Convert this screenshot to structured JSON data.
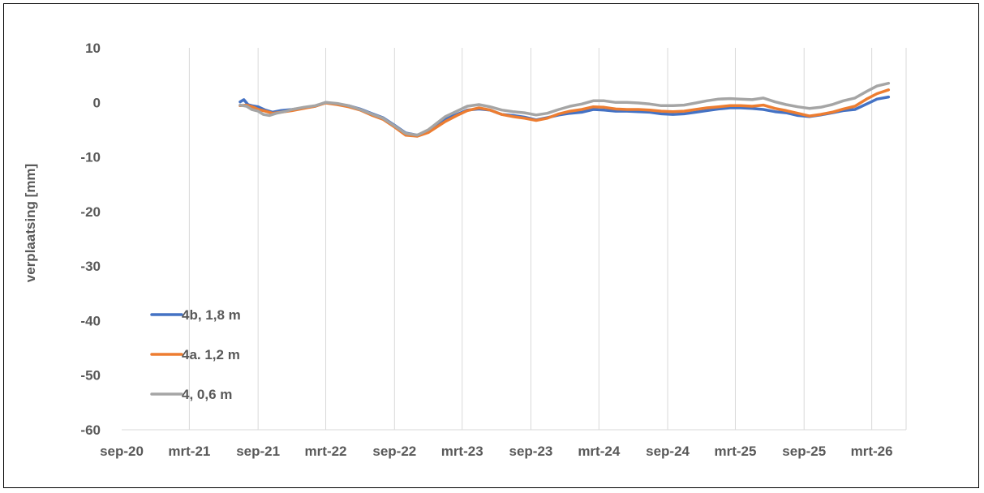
{
  "chart_data": {
    "type": "line",
    "title": "",
    "xlabel": "",
    "ylabel": "verplaatsing [mm]",
    "ylim": [
      -60,
      10
    ],
    "yticks": [
      10,
      0,
      -10,
      -20,
      -30,
      -40,
      -50,
      -60
    ],
    "xlim": [
      "2020-09-01",
      "2026-06-01"
    ],
    "xticks": [
      {
        "date": "2020-09-01",
        "label": "sep-20"
      },
      {
        "date": "2021-03-01",
        "label": "mrt-21"
      },
      {
        "date": "2021-09-01",
        "label": "sep-21"
      },
      {
        "date": "2022-03-01",
        "label": "mrt-22"
      },
      {
        "date": "2022-09-01",
        "label": "sep-22"
      },
      {
        "date": "2023-03-01",
        "label": "mrt-23"
      },
      {
        "date": "2023-09-01",
        "label": "sep-23"
      },
      {
        "date": "2024-03-01",
        "label": "mrt-24"
      },
      {
        "date": "2024-09-01",
        "label": "sep-24"
      },
      {
        "date": "2025-03-01",
        "label": "mrt-25"
      },
      {
        "date": "2025-09-01",
        "label": "sep-25"
      },
      {
        "date": "2026-03-01",
        "label": "mrt-26"
      }
    ],
    "grid": "vertical",
    "legend": "bottom-left",
    "series": [
      {
        "name": "4b, 1,8 m",
        "color": "#4472C4",
        "points": [
          [
            "2021-07-15",
            0.1
          ],
          [
            "2021-07-25",
            0.5
          ],
          [
            "2021-08-05",
            -0.4
          ],
          [
            "2021-08-15",
            -0.6
          ],
          [
            "2021-09-01",
            -0.8
          ],
          [
            "2021-09-20",
            -1.4
          ],
          [
            "2021-10-10",
            -1.8
          ],
          [
            "2021-11-01",
            -1.5
          ],
          [
            "2021-12-01",
            -1.3
          ],
          [
            "2022-01-01",
            -1.0
          ],
          [
            "2022-02-01",
            -0.7
          ],
          [
            "2022-03-01",
            0.0
          ],
          [
            "2022-04-01",
            -0.3
          ],
          [
            "2022-05-01",
            -0.6
          ],
          [
            "2022-06-01",
            -1.2
          ],
          [
            "2022-07-01",
            -2.0
          ],
          [
            "2022-08-01",
            -2.8
          ],
          [
            "2022-09-01",
            -4.2
          ],
          [
            "2022-10-01",
            -5.6
          ],
          [
            "2022-11-01",
            -6.0
          ],
          [
            "2022-12-01",
            -5.3
          ],
          [
            "2023-01-15",
            -3.0
          ],
          [
            "2023-02-15",
            -2.2
          ],
          [
            "2023-03-15",
            -1.4
          ],
          [
            "2023-04-15",
            -1.2
          ],
          [
            "2023-05-15",
            -1.4
          ],
          [
            "2023-06-15",
            -2.2
          ],
          [
            "2023-07-15",
            -2.4
          ],
          [
            "2023-08-15",
            -2.7
          ],
          [
            "2023-09-15",
            -3.2
          ],
          [
            "2023-10-15",
            -2.8
          ],
          [
            "2023-11-15",
            -2.3
          ],
          [
            "2023-12-15",
            -2.0
          ],
          [
            "2024-01-15",
            -1.8
          ],
          [
            "2024-02-15",
            -1.3
          ],
          [
            "2024-03-15",
            -1.4
          ],
          [
            "2024-04-15",
            -1.6
          ],
          [
            "2024-05-15",
            -1.6
          ],
          [
            "2024-06-15",
            -1.7
          ],
          [
            "2024-07-15",
            -1.8
          ],
          [
            "2024-08-15",
            -2.1
          ],
          [
            "2024-09-15",
            -2.2
          ],
          [
            "2024-10-15",
            -2.1
          ],
          [
            "2024-11-15",
            -1.8
          ],
          [
            "2024-12-15",
            -1.5
          ],
          [
            "2025-01-15",
            -1.2
          ],
          [
            "2025-02-15",
            -1.0
          ],
          [
            "2025-03-15",
            -1.0
          ],
          [
            "2025-04-15",
            -1.1
          ],
          [
            "2025-05-15",
            -1.3
          ],
          [
            "2025-06-15",
            -1.7
          ],
          [
            "2025-07-15",
            -1.9
          ],
          [
            "2025-08-15",
            -2.4
          ],
          [
            "2025-09-15",
            -2.6
          ],
          [
            "2025-10-15",
            -2.3
          ],
          [
            "2025-11-15",
            -1.9
          ],
          [
            "2025-12-15",
            -1.5
          ],
          [
            "2026-01-15",
            -1.3
          ],
          [
            "2026-02-15",
            -0.3
          ],
          [
            "2026-03-15",
            0.6
          ],
          [
            "2026-04-15",
            1.0
          ]
        ]
      },
      {
        "name": "4a. 1,2 m",
        "color": "#ED7D31",
        "points": [
          [
            "2021-07-15",
            -0.6
          ],
          [
            "2021-08-01",
            -0.5
          ],
          [
            "2021-08-20",
            -0.9
          ],
          [
            "2021-09-01",
            -1.3
          ],
          [
            "2021-09-20",
            -1.6
          ],
          [
            "2021-10-10",
            -2.0
          ],
          [
            "2021-11-01",
            -1.8
          ],
          [
            "2021-12-01",
            -1.5
          ],
          [
            "2022-01-01",
            -1.1
          ],
          [
            "2022-02-01",
            -0.7
          ],
          [
            "2022-03-01",
            -0.1
          ],
          [
            "2022-04-01",
            -0.4
          ],
          [
            "2022-05-01",
            -0.8
          ],
          [
            "2022-06-01",
            -1.4
          ],
          [
            "2022-07-01",
            -2.3
          ],
          [
            "2022-08-01",
            -3.1
          ],
          [
            "2022-09-01",
            -4.5
          ],
          [
            "2022-10-01",
            -6.0
          ],
          [
            "2022-11-01",
            -6.2
          ],
          [
            "2022-12-01",
            -5.5
          ],
          [
            "2023-01-15",
            -3.5
          ],
          [
            "2023-02-15",
            -2.4
          ],
          [
            "2023-03-15",
            -1.5
          ],
          [
            "2023-04-15",
            -1.0
          ],
          [
            "2023-05-15",
            -1.4
          ],
          [
            "2023-06-15",
            -2.2
          ],
          [
            "2023-07-15",
            -2.6
          ],
          [
            "2023-08-15",
            -2.9
          ],
          [
            "2023-09-15",
            -3.3
          ],
          [
            "2023-10-15",
            -2.9
          ],
          [
            "2023-11-15",
            -2.1
          ],
          [
            "2023-12-15",
            -1.6
          ],
          [
            "2024-01-15",
            -1.3
          ],
          [
            "2024-02-15",
            -0.8
          ],
          [
            "2024-03-15",
            -0.9
          ],
          [
            "2024-04-15",
            -1.2
          ],
          [
            "2024-05-15",
            -1.3
          ],
          [
            "2024-06-15",
            -1.3
          ],
          [
            "2024-07-15",
            -1.4
          ],
          [
            "2024-08-15",
            -1.6
          ],
          [
            "2024-09-15",
            -1.7
          ],
          [
            "2024-10-15",
            -1.6
          ],
          [
            "2024-11-15",
            -1.3
          ],
          [
            "2024-12-15",
            -1.0
          ],
          [
            "2025-01-15",
            -0.8
          ],
          [
            "2025-02-15",
            -0.6
          ],
          [
            "2025-03-15",
            -0.6
          ],
          [
            "2025-04-15",
            -0.7
          ],
          [
            "2025-05-15",
            -0.5
          ],
          [
            "2025-06-15",
            -1.1
          ],
          [
            "2025-07-15",
            -1.5
          ],
          [
            "2025-08-15",
            -2.0
          ],
          [
            "2025-09-15",
            -2.5
          ],
          [
            "2025-10-15",
            -2.2
          ],
          [
            "2025-11-15",
            -1.8
          ],
          [
            "2025-12-15",
            -1.2
          ],
          [
            "2026-01-15",
            -0.7
          ],
          [
            "2026-02-15",
            0.6
          ],
          [
            "2026-03-15",
            1.6
          ],
          [
            "2026-04-15",
            2.3
          ]
        ]
      },
      {
        "name": "4, 0,6 m",
        "color": "#A5A5A5",
        "points": [
          [
            "2021-07-15",
            -0.5
          ],
          [
            "2021-08-01",
            -0.7
          ],
          [
            "2021-08-15",
            -1.3
          ],
          [
            "2021-09-01",
            -1.6
          ],
          [
            "2021-09-15",
            -2.2
          ],
          [
            "2021-10-01",
            -2.4
          ],
          [
            "2021-10-20",
            -2.0
          ],
          [
            "2021-11-10",
            -1.7
          ],
          [
            "2021-12-01",
            -1.3
          ],
          [
            "2022-01-01",
            -0.9
          ],
          [
            "2022-02-01",
            -0.6
          ],
          [
            "2022-03-01",
            0.0
          ],
          [
            "2022-04-01",
            -0.2
          ],
          [
            "2022-05-01",
            -0.6
          ],
          [
            "2022-06-01",
            -1.3
          ],
          [
            "2022-07-01",
            -2.1
          ],
          [
            "2022-08-01",
            -2.9
          ],
          [
            "2022-09-01",
            -4.3
          ],
          [
            "2022-10-01",
            -5.7
          ],
          [
            "2022-11-01",
            -6.0
          ],
          [
            "2022-12-01",
            -5.0
          ],
          [
            "2023-01-15",
            -2.6
          ],
          [
            "2023-02-15",
            -1.6
          ],
          [
            "2023-03-15",
            -0.7
          ],
          [
            "2023-04-15",
            -0.4
          ],
          [
            "2023-05-15",
            -0.8
          ],
          [
            "2023-06-15",
            -1.4
          ],
          [
            "2023-07-15",
            -1.7
          ],
          [
            "2023-08-15",
            -1.9
          ],
          [
            "2023-09-15",
            -2.3
          ],
          [
            "2023-10-15",
            -2.0
          ],
          [
            "2023-11-15",
            -1.3
          ],
          [
            "2023-12-15",
            -0.7
          ],
          [
            "2024-01-15",
            -0.3
          ],
          [
            "2024-02-15",
            0.3
          ],
          [
            "2024-03-15",
            0.3
          ],
          [
            "2024-04-15",
            0.0
          ],
          [
            "2024-05-15",
            0.0
          ],
          [
            "2024-06-15",
            -0.1
          ],
          [
            "2024-07-15",
            -0.3
          ],
          [
            "2024-08-15",
            -0.6
          ],
          [
            "2024-09-15",
            -0.6
          ],
          [
            "2024-10-15",
            -0.5
          ],
          [
            "2024-11-15",
            -0.1
          ],
          [
            "2024-12-15",
            0.3
          ],
          [
            "2025-01-15",
            0.6
          ],
          [
            "2025-02-15",
            0.7
          ],
          [
            "2025-03-15",
            0.6
          ],
          [
            "2025-04-15",
            0.5
          ],
          [
            "2025-05-15",
            0.8
          ],
          [
            "2025-06-15",
            0.1
          ],
          [
            "2025-07-15",
            -0.4
          ],
          [
            "2025-08-15",
            -0.8
          ],
          [
            "2025-09-15",
            -1.1
          ],
          [
            "2025-10-15",
            -0.9
          ],
          [
            "2025-11-15",
            -0.4
          ],
          [
            "2025-12-15",
            0.3
          ],
          [
            "2026-01-15",
            0.8
          ],
          [
            "2026-02-15",
            2.0
          ],
          [
            "2026-03-15",
            3.0
          ],
          [
            "2026-04-15",
            3.5
          ]
        ]
      }
    ]
  }
}
